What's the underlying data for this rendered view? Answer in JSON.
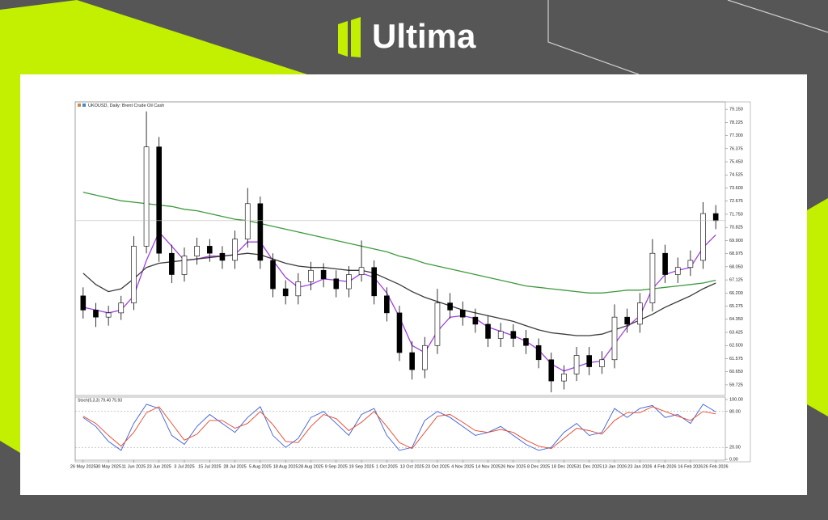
{
  "header": {
    "brand": "Ultima"
  },
  "chart_data": [
    {
      "type": "candlestick",
      "title": "UKOUSD, Daily: Brent Crude Oil Cash",
      "categories": [
        "26 May 2025",
        null,
        "30 May 2025",
        null,
        "11 Jun 2025",
        null,
        "23 Jun 2025",
        null,
        "3 Jul 2025",
        null,
        "15 Jul 2025",
        null,
        "28 Jul 2025",
        null,
        "5 Aug 2025",
        null,
        "18 Aug 2025",
        null,
        "28 Aug 2025",
        null,
        "9 Sep 2025",
        null,
        "19 Sep 2025",
        null,
        "1 Oct 2025",
        null,
        "13 Oct 2025",
        null,
        "23 Oct 2025",
        null,
        "4 Nov 2025",
        null,
        "14 Nov 2025",
        null,
        "26 Nov 2025",
        null,
        "8 Dec 2025",
        null,
        "18 Dec 2025",
        null,
        "31 Dec 2025",
        null,
        "13 Jan 2026",
        null,
        "23 Jan 2026",
        null,
        "4 Feb 2026",
        null,
        "16 Feb 2026",
        null,
        "26 Feb 2026"
      ],
      "open": [
        66.0,
        65.0,
        64.5,
        64.8,
        65.5,
        69.5,
        76.5,
        69.0,
        67.5,
        68.8,
        69.5,
        69.0,
        68.5,
        70.0,
        72.5,
        68.5,
        66.5,
        66.0,
        67.0,
        67.8,
        67.2,
        66.5,
        67.5,
        68.0,
        66.0,
        64.8,
        62.0,
        60.8,
        62.5,
        65.5,
        65.0,
        64.5,
        64.0,
        63.0,
        63.5,
        63.0,
        62.5,
        61.5,
        60.0,
        60.5,
        61.8,
        61.0,
        61.5,
        64.5,
        64.0,
        65.5,
        69.0,
        67.5,
        68.0,
        68.5,
        71.8
      ],
      "high": [
        66.6,
        65.5,
        65.3,
        66.0,
        70.2,
        79.0,
        77.2,
        69.6,
        69.4,
        70.1,
        70.0,
        69.5,
        70.6,
        73.6,
        73.0,
        69.0,
        67.1,
        67.6,
        68.4,
        68.3,
        67.8,
        68.1,
        69.9,
        68.5,
        66.6,
        65.3,
        62.8,
        63.1,
        66.5,
        66.2,
        65.6,
        65.1,
        64.6,
        64.1,
        64.0,
        63.6,
        63.0,
        62.0,
        61.1,
        62.4,
        62.4,
        62.1,
        65.4,
        65.1,
        66.2,
        70.0,
        69.6,
        68.7,
        69.2,
        72.6,
        72.4
      ],
      "low": [
        64.4,
        63.8,
        63.9,
        64.3,
        65.0,
        69.0,
        68.4,
        66.9,
        67.0,
        68.2,
        68.4,
        67.9,
        67.9,
        69.4,
        67.9,
        65.9,
        65.4,
        65.4,
        66.4,
        66.6,
        65.9,
        65.9,
        67.0,
        65.4,
        64.2,
        61.4,
        60.1,
        60.2,
        61.9,
        64.4,
        63.9,
        63.4,
        62.4,
        62.4,
        62.4,
        61.9,
        60.9,
        59.2,
        59.4,
        60.0,
        60.4,
        60.5,
        60.9,
        63.4,
        63.4,
        64.9,
        66.9,
        66.9,
        67.4,
        67.9,
        70.7
      ],
      "close": [
        65.0,
        64.5,
        64.8,
        65.5,
        69.5,
        76.5,
        69.0,
        67.5,
        68.8,
        69.5,
        69.0,
        68.5,
        70.0,
        72.5,
        68.5,
        66.5,
        66.0,
        67.0,
        67.8,
        67.2,
        66.5,
        67.5,
        68.0,
        66.0,
        64.8,
        62.0,
        60.8,
        62.5,
        65.5,
        65.0,
        64.5,
        64.0,
        63.0,
        63.5,
        63.0,
        62.5,
        61.5,
        60.0,
        60.5,
        61.8,
        61.0,
        61.5,
        64.5,
        64.0,
        65.5,
        69.0,
        67.5,
        68.0,
        68.5,
        71.8,
        71.3
      ],
      "up_color": "#ffffff",
      "down_color": "#000000",
      "overlays": [
        {
          "color": "#a040e0",
          "values": [
            65.2,
            65.0,
            64.8,
            65.0,
            66.0,
            68.5,
            70.5,
            69.5,
            68.5,
            68.6,
            68.8,
            68.8,
            68.9,
            69.8,
            69.8,
            68.5,
            67.3,
            66.6,
            66.8,
            67.2,
            67.1,
            67.0,
            67.6,
            67.3,
            66.2,
            64.5,
            62.5,
            62.0,
            63.5,
            64.5,
            64.6,
            64.4,
            63.8,
            63.5,
            63.2,
            62.8,
            62.2,
            61.2,
            60.7,
            61.0,
            61.3,
            61.4,
            62.6,
            63.8,
            64.6,
            66.5,
            67.5,
            67.8,
            68.0,
            69.4,
            70.3
          ]
        },
        {
          "color": "#3a3a3a",
          "values": [
            67.6,
            66.8,
            66.3,
            66.5,
            67.2,
            68.0,
            68.3,
            68.4,
            68.5,
            68.6,
            68.7,
            68.8,
            68.9,
            69.0,
            68.9,
            68.6,
            68.3,
            68.1,
            68.0,
            68.0,
            67.9,
            67.8,
            67.8,
            67.6,
            67.2,
            66.8,
            66.3,
            65.9,
            65.6,
            65.3,
            65.0,
            64.8,
            64.6,
            64.4,
            64.2,
            63.9,
            63.6,
            63.4,
            63.3,
            63.2,
            63.2,
            63.3,
            63.6,
            63.9,
            64.3,
            64.7,
            65.2,
            65.6,
            66.0,
            66.5,
            66.9
          ]
        },
        {
          "color": "#3e9a3e",
          "values": [
            73.3,
            73.1,
            72.9,
            72.7,
            72.6,
            72.5,
            72.4,
            72.3,
            72.1,
            72.0,
            71.8,
            71.6,
            71.4,
            71.3,
            71.1,
            70.9,
            70.7,
            70.5,
            70.3,
            70.1,
            69.9,
            69.7,
            69.5,
            69.3,
            69.1,
            68.8,
            68.6,
            68.3,
            68.1,
            67.9,
            67.7,
            67.5,
            67.3,
            67.1,
            66.9,
            66.7,
            66.6,
            66.5,
            66.4,
            66.3,
            66.2,
            66.2,
            66.3,
            66.4,
            66.4,
            66.5,
            66.6,
            66.7,
            66.8,
            66.9,
            67.1
          ]
        }
      ],
      "ylim": [
        58.98,
        79.67
      ],
      "yticks": [
        {
          "value": 79.15,
          "label": "79.150"
        },
        {
          "value": 78.225,
          "label": "78.225"
        },
        {
          "value": 77.3,
          "label": "77.300"
        },
        {
          "value": 76.375,
          "label": "76.375"
        },
        {
          "value": 75.45,
          "label": "75.450"
        },
        {
          "value": 74.525,
          "label": "74.525"
        },
        {
          "value": 73.6,
          "label": "73.600"
        },
        {
          "value": 72.675,
          "label": "72.675"
        },
        {
          "value": 71.75,
          "label": "71.750"
        },
        {
          "value": 70.825,
          "label": "70.825"
        },
        {
          "value": 69.9,
          "label": "69.900"
        },
        {
          "value": 68.975,
          "label": "68.975"
        },
        {
          "value": 68.05,
          "label": "68.050"
        },
        {
          "value": 67.125,
          "label": "67.125"
        },
        {
          "value": 66.2,
          "label": "66.200"
        },
        {
          "value": 65.275,
          "label": "65.275"
        },
        {
          "value": 64.35,
          "label": "64.350"
        },
        {
          "value": 63.425,
          "label": "63.425"
        },
        {
          "value": 62.5,
          "label": "62.500"
        },
        {
          "value": 61.575,
          "label": "61.575"
        },
        {
          "value": 60.65,
          "label": "60.650"
        },
        {
          "value": 59.725,
          "label": "59.725"
        }
      ]
    },
    {
      "type": "line",
      "title": "Stoch(5,3,3) 79.40 75.93",
      "series": [
        {
          "color": "#3a5fd8",
          "values": [
            70,
            55,
            30,
            15,
            60,
            92,
            85,
            40,
            25,
            55,
            75,
            60,
            45,
            70,
            88,
            40,
            20,
            35,
            70,
            80,
            60,
            40,
            75,
            85,
            40,
            15,
            20,
            65,
            80,
            70,
            55,
            40,
            45,
            55,
            40,
            25,
            15,
            20,
            45,
            60,
            40,
            45,
            85,
            70,
            85,
            90,
            70,
            75,
            60,
            92,
            79.4
          ]
        },
        {
          "color": "#e8452a",
          "values": [
            72,
            60,
            40,
            22,
            45,
            78,
            88,
            60,
            32,
            42,
            65,
            65,
            52,
            60,
            80,
            58,
            30,
            28,
            55,
            75,
            68,
            48,
            62,
            80,
            55,
            28,
            18,
            45,
            72,
            75,
            62,
            48,
            45,
            50,
            45,
            32,
            22,
            18,
            35,
            52,
            48,
            42,
            65,
            78,
            78,
            88,
            80,
            72,
            65,
            80,
            75.93
          ]
        }
      ],
      "ylim": [
        0,
        100
      ],
      "yticks": [
        {
          "value": 100,
          "label": "100.00"
        },
        {
          "value": 80,
          "label": "80.00"
        },
        {
          "value": 20,
          "label": "20.00"
        },
        {
          "value": 0,
          "label": "0.00"
        }
      ],
      "levels": [
        80,
        20
      ]
    }
  ]
}
